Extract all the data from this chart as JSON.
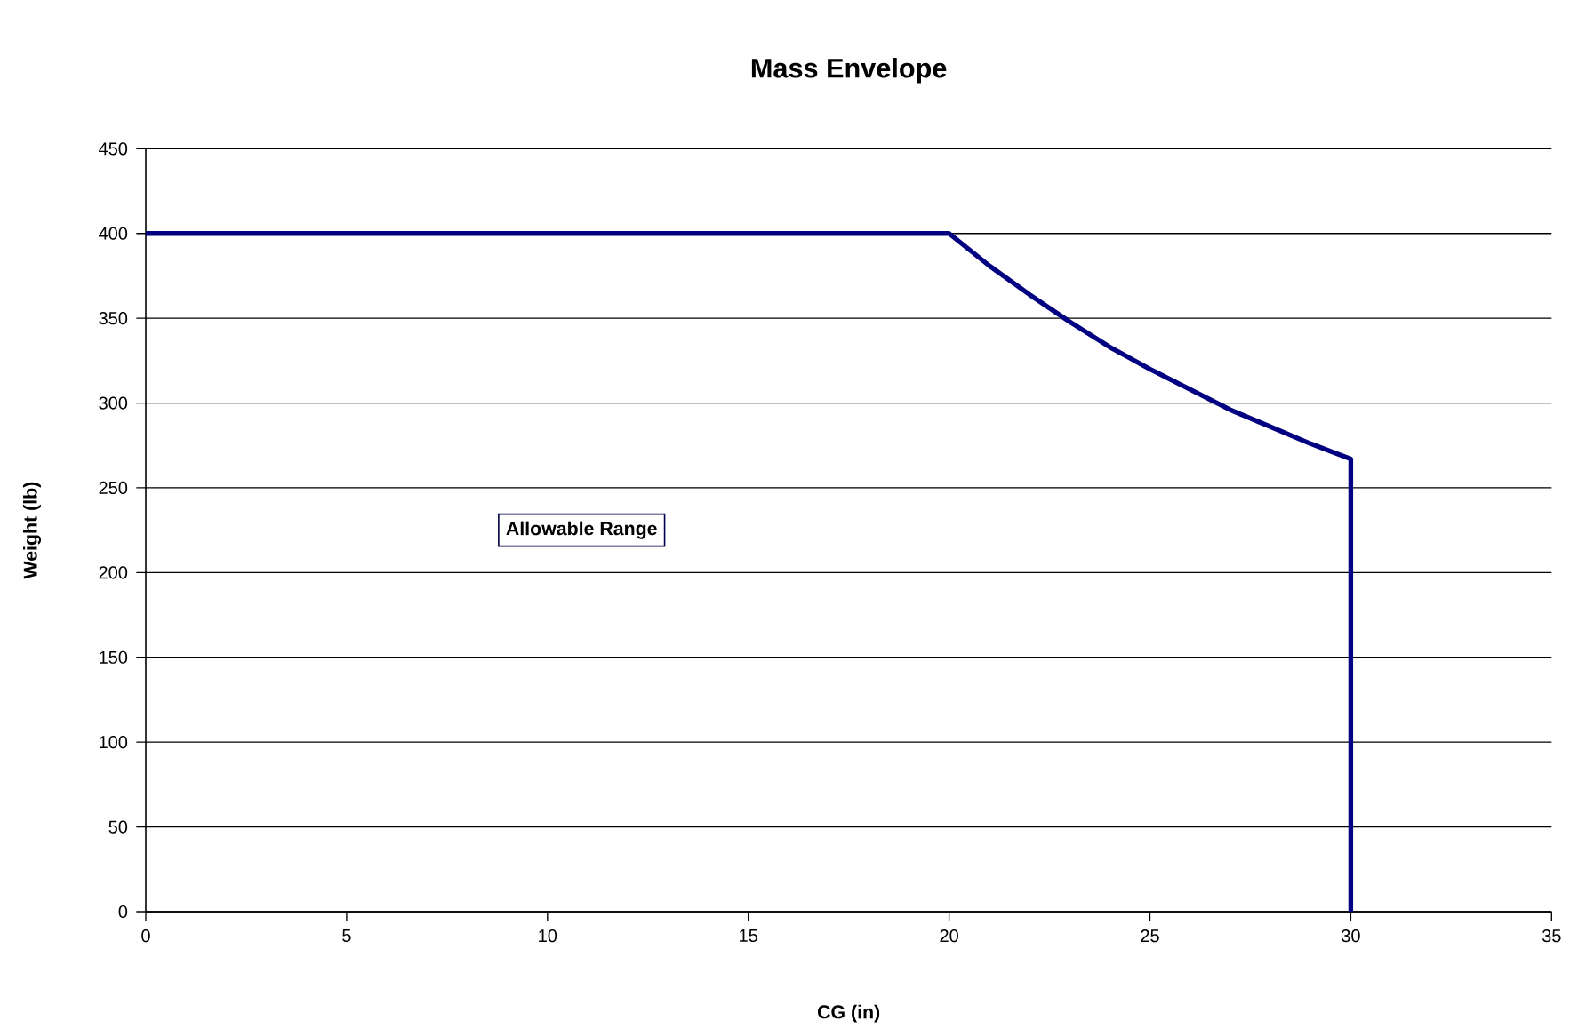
{
  "chart_data": {
    "type": "line",
    "title": "Mass Envelope",
    "xlabel": "CG (in)",
    "ylabel": "Weight (lb)",
    "series": [
      {
        "color": "#000080",
        "x": [
          0,
          20,
          21,
          22,
          23,
          24,
          25,
          26,
          27,
          28,
          29,
          30,
          30
        ],
        "values": [
          400,
          400,
          381,
          364,
          348,
          333,
          320,
          308,
          296,
          286,
          276,
          267,
          0
        ]
      }
    ],
    "xlim": [
      0,
      35
    ],
    "ylim": [
      0,
      450
    ],
    "xticks": [
      0,
      5,
      10,
      15,
      20,
      25,
      30,
      35
    ],
    "yticks": [
      0,
      50,
      100,
      150,
      200,
      250,
      300,
      350,
      400,
      450
    ],
    "grid": "y",
    "legend": false,
    "marker": "none",
    "line_style": "solid",
    "annotations": [
      "Allowable Range"
    ]
  }
}
